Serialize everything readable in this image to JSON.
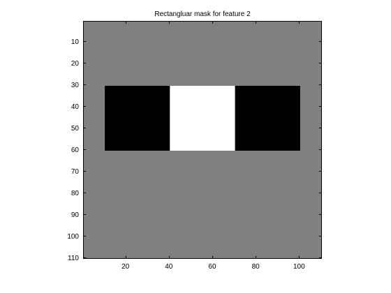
{
  "chart_data": {
    "type": "heatmap",
    "title": "Rectangluar mask for feature 2",
    "xlabel": "",
    "ylabel": "",
    "xlim": [
      0.5,
      110.5
    ],
    "ylim": [
      0.5,
      110.5
    ],
    "y_inverted": true,
    "grid": false,
    "colormap": {
      "-1": "#000000",
      "0": "#808080",
      "1": "#ffffff"
    },
    "background_value": 0,
    "x_ticks": [
      20,
      40,
      60,
      80,
      100
    ],
    "y_ticks": [
      10,
      20,
      30,
      40,
      50,
      60,
      70,
      80,
      90,
      100,
      110
    ],
    "regions": [
      {
        "value": -1,
        "x_range": [
          10.5,
          40.5
        ],
        "y_range": [
          30.5,
          60.5
        ]
      },
      {
        "value": 1,
        "x_range": [
          40.5,
          70.5
        ],
        "y_range": [
          30.5,
          60.5
        ]
      },
      {
        "value": -1,
        "x_range": [
          70.5,
          100.5
        ],
        "y_range": [
          30.5,
          60.5
        ]
      }
    ]
  }
}
